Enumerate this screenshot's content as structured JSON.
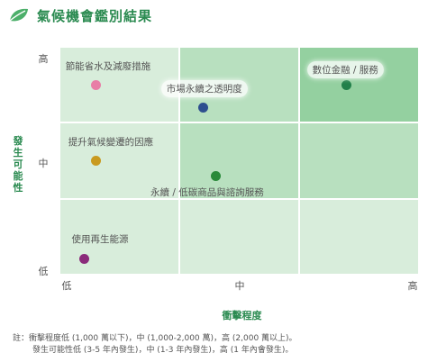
{
  "title": "氣候機會鑑別結果",
  "y_axis": {
    "label_chars": [
      "發",
      "生",
      "可",
      "能",
      "性"
    ],
    "ticks": [
      "高",
      "中",
      "低"
    ]
  },
  "x_axis": {
    "label": "衝擊程度",
    "ticks": [
      "低",
      "中",
      "高"
    ]
  },
  "colors": {
    "title": "#2a8a50",
    "cell_light": "#d8eddb",
    "cell_mid": "#b8e0bf",
    "cell_dark": "#94d0a0"
  },
  "chart_data": {
    "type": "scatter",
    "x_categories": [
      "低",
      "中",
      "高"
    ],
    "y_categories": [
      "低",
      "中",
      "高"
    ],
    "points": [
      {
        "name": "節能省水及減廢措施",
        "x": 0.3,
        "y": 2.5,
        "color": "#e87ea6"
      },
      {
        "name": "市場永續之透明度",
        "x": 1.2,
        "y": 2.2,
        "color": "#2e4f8f"
      },
      {
        "name": "數位金融 / 服務",
        "x": 2.4,
        "y": 2.5,
        "color": "#22804a"
      },
      {
        "name": "提升氣候變遷的因應",
        "x": 0.3,
        "y": 1.5,
        "color": "#c99a1f"
      },
      {
        "name": "永續 / 低碳商品與諮詢服務",
        "x": 1.3,
        "y": 1.3,
        "color": "#2a8a3a"
      },
      {
        "name": "使用再生能源",
        "x": 0.2,
        "y": 0.2,
        "color": "#8a2a7a"
      }
    ]
  },
  "notes": [
    "註：衝擊程度低 (1,000 萬以下)，中 (1,000-2,000 萬)，高 (2,000 萬以上)。",
    "發生可能性低 (3-5 年內發生)，中 (1-3 年內發生)，高 (1 年內會發生)。"
  ]
}
